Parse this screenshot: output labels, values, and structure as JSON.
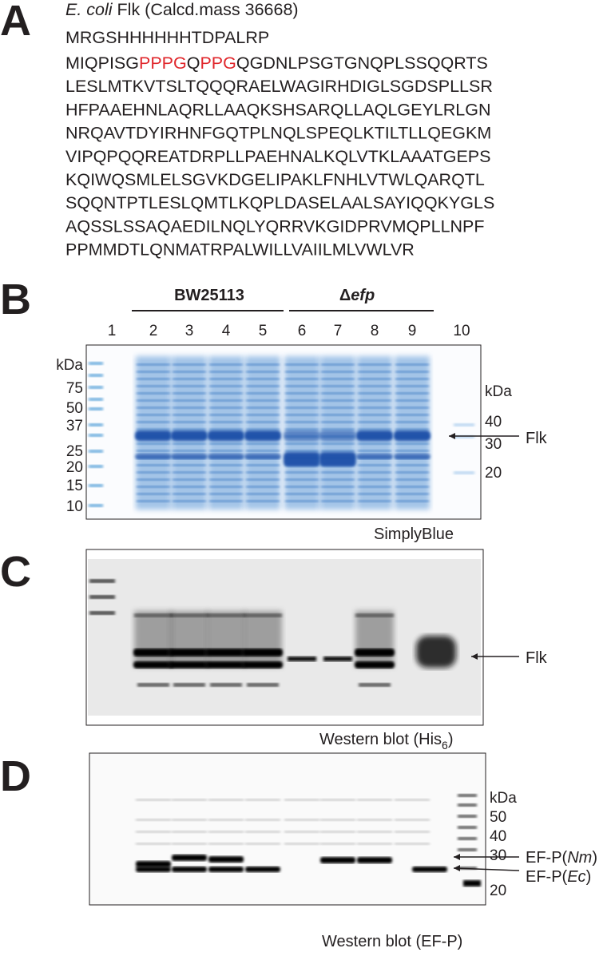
{
  "panel_a": {
    "label": "A",
    "title_italic": "E. coli",
    "title": " Flk (Calcd.mass 36668)",
    "tag": {
      "text": "MRGSHHHHHHTDPALRP",
      "color": "#2ba44a"
    },
    "sequence": [
      [
        {
          "text": "MIQPISG"
        },
        {
          "text": "PPPG",
          "color": "#e0262b"
        },
        {
          "text": "Q"
        },
        {
          "text": "PPG",
          "color": "#e0262b"
        },
        {
          "text": "QGDNLPSGTGNQPLSSQQRTS"
        }
      ],
      [
        {
          "text": "LESLMTKVTSLTQQQRAELWAGIRHDIGLSGDSPLLSR"
        }
      ],
      [
        {
          "text": "HFPAAEHNLAQRLLAAQKSHSARQLLAQLGEYLRLGN"
        }
      ],
      [
        {
          "text": "NRQAVTDYIRHNFGQTPLNQLSPEQLKTILTLLQEGKM"
        }
      ],
      [
        {
          "text": "VIPQPQQREATDRPLLPAEHNALKQLVTKLAAATGEPS"
        }
      ],
      [
        {
          "text": "KQIWQSMLELSGVKDGELIPAKLFNHLVTWLQARQTL"
        }
      ],
      [
        {
          "text": "SQQNTPTLESLQMTLKQPLDASELAALSAYIQQKYGLS"
        }
      ],
      [
        {
          "text": "AQSSLSSAQAEDILNQLYQRRVKGIDPRVMQPLLNPF"
        }
      ],
      [
        {
          "text": "PPMMDTLQNMATRPALWILLVAIILMLVWLVR"
        }
      ]
    ]
  },
  "panel_b": {
    "label": "B",
    "group_1": "BW25113",
    "group_2_prefix": "Δ",
    "group_2_italic": "efp",
    "lanes": [
      "1",
      "2",
      "3",
      "4",
      "5",
      "6",
      "7",
      "8",
      "9",
      "10"
    ],
    "left_markers": [
      "kDa",
      "75",
      "50",
      "37",
      "25",
      "20",
      "15",
      "10"
    ],
    "right_markers": [
      "kDa",
      "40",
      "30",
      "20"
    ],
    "band_label": "Flk",
    "caption": "SimplyBlue"
  },
  "panel_c": {
    "label": "C",
    "band_label": "Flk",
    "caption": "Western blot (His",
    "caption_sub": "6",
    "caption_end": ")"
  },
  "panel_d": {
    "label": "D",
    "markers": [
      "kDa",
      "50",
      "40",
      "30",
      "20"
    ],
    "band_1_prefix": "EF-P(",
    "band_1_italic": "Nm",
    "band_1_suffix": ")",
    "band_2_prefix": "EF-P(",
    "band_2_italic": "Ec",
    "band_2_suffix": ")",
    "caption": "Western blot (EF-P)"
  }
}
